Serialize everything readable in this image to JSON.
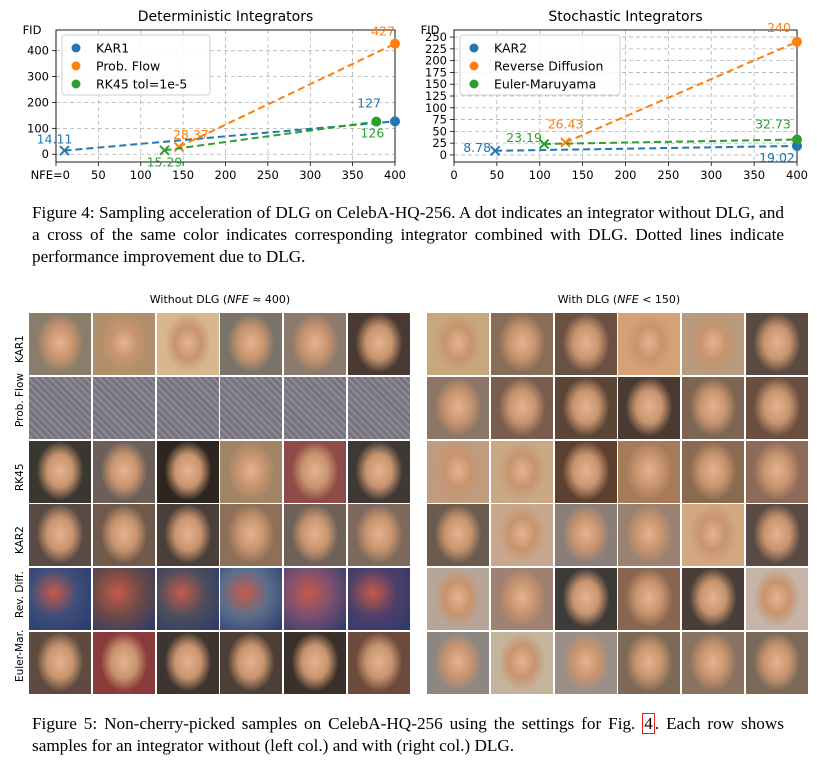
{
  "chart_data": [
    {
      "type": "line",
      "title": "Deterministic Integrators",
      "ylabel": "FID",
      "xlabel": "NFE=0",
      "xlim": [
        0,
        400
      ],
      "ylim": [
        -30,
        480
      ],
      "xticks": [
        0,
        50,
        100,
        150,
        200,
        250,
        300,
        350,
        400
      ],
      "xtick_labels": [
        "NFE=0",
        "50",
        "100",
        "150",
        "200",
        "250",
        "300",
        "350",
        "400"
      ],
      "yticks": [
        0,
        100,
        200,
        300,
        400
      ],
      "grid": true,
      "legend_position": "top-left",
      "series": [
        {
          "name": "KAR1",
          "color": "#1f77b4",
          "dlg": {
            "x": 10,
            "y": 14.11,
            "label": "14.11"
          },
          "base": {
            "x": 400,
            "y": 127,
            "label": "127"
          }
        },
        {
          "name": "Prob. Flow",
          "color": "#ff7f0e",
          "dlg": {
            "x": 145,
            "y": 28.37,
            "label": "28.37"
          },
          "base": {
            "x": 400,
            "y": 427,
            "label": "427"
          }
        },
        {
          "name": "RK45 tol=1e-5",
          "color": "#2ca02c",
          "dlg": {
            "x": 128,
            "y": 15.29,
            "label": "15.29"
          },
          "base": {
            "x": 378,
            "y": 126,
            "label": "126"
          }
        }
      ]
    },
    {
      "type": "line",
      "title": "Stochastic Integrators",
      "ylabel": "FID",
      "xlim": [
        0,
        400
      ],
      "ylim": [
        -15,
        265
      ],
      "xticks": [
        0,
        50,
        100,
        150,
        200,
        250,
        300,
        350,
        400
      ],
      "xtick_labels": [
        "0",
        "50",
        "100",
        "150",
        "200",
        "250",
        "300",
        "350",
        "400"
      ],
      "yticks": [
        0,
        25,
        50,
        75,
        100,
        125,
        150,
        175,
        200,
        225,
        250
      ],
      "grid": true,
      "legend_position": "top-left",
      "series": [
        {
          "name": "KAR2",
          "color": "#1f77b4",
          "dlg": {
            "x": 48,
            "y": 8.78,
            "label": "8.78"
          },
          "base": {
            "x": 400,
            "y": 19.02,
            "label": "19.02"
          }
        },
        {
          "name": "Reverse Diffusion",
          "color": "#ff7f0e",
          "dlg": {
            "x": 130,
            "y": 26.43,
            "label": "26.43"
          },
          "base": {
            "x": 400,
            "y": 240,
            "label": "240"
          }
        },
        {
          "name": "Euler-Maruyama",
          "color": "#2ca02c",
          "dlg": {
            "x": 105,
            "y": 23.19,
            "label": "23.19"
          },
          "base": {
            "x": 400,
            "y": 32.73,
            "label": "32.73"
          }
        }
      ]
    }
  ],
  "captions": {
    "fig4": "Figure 4: Sampling acceleration of DLG on CelebA-HQ-256. A dot indicates an integrator without DLG, and a cross of the same color indicates corresponding integrator combined with DLG. Dotted lines indicate performance improvement due to DLG.",
    "fig5_a": "Figure 5: Non-cherry-picked samples on CelebA-HQ-256 using the settings for Fig. ",
    "fig5_ref": "4",
    "fig5_b": ". Each row shows samples for an integrator without (left col.) and with (right col.) DLG."
  },
  "sample_grid": {
    "left_title_a": "Without DLG (",
    "left_title_em": "NFE",
    "left_title_b": " ≈ 400)",
    "right_title_a": "With DLG (",
    "right_title_em": "NFE",
    "right_title_b": " < 150)",
    "rows": [
      "KAR1",
      "Prob. Flow",
      "RK45",
      "KAR2",
      "Rev. Diff.",
      "Euler-Mar."
    ]
  }
}
